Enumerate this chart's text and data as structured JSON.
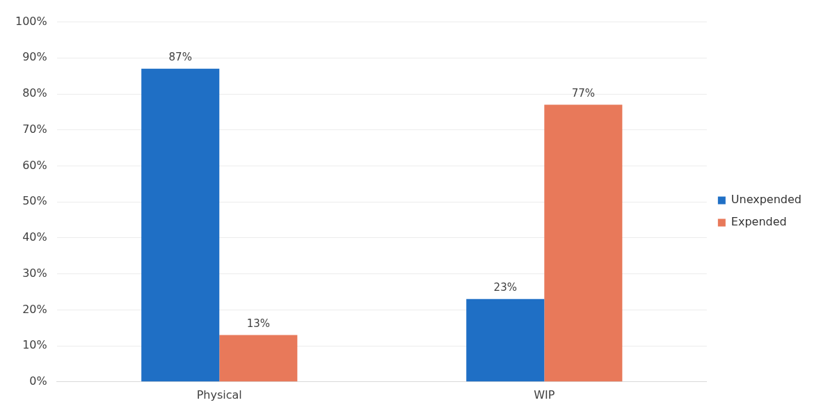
{
  "chart_data": {
    "type": "bar",
    "categories": [
      "Physical",
      "WIP"
    ],
    "series": [
      {
        "name": "Unexpended",
        "color": "#1f6fc5",
        "values": [
          87,
          23
        ],
        "value_labels": [
          "87%",
          "23%"
        ]
      },
      {
        "name": "Expended",
        "color": "#e8795a",
        "values": [
          13,
          77
        ],
        "value_labels": [
          "13%",
          "77%"
        ]
      }
    ],
    "ylim": [
      0,
      100
    ],
    "yticks": [
      {
        "value": 0,
        "label": "0%"
      },
      {
        "value": 10,
        "label": "10%"
      },
      {
        "value": 20,
        "label": "20%"
      },
      {
        "value": 30,
        "label": "30%"
      },
      {
        "value": 40,
        "label": "40%"
      },
      {
        "value": 50,
        "label": "50%"
      },
      {
        "value": 60,
        "label": "60%"
      },
      {
        "value": 70,
        "label": "70%"
      },
      {
        "value": 80,
        "label": "80%"
      },
      {
        "value": 90,
        "label": "90%"
      },
      {
        "value": 100,
        "label": "100%"
      }
    ],
    "grid": "y",
    "legend": "right"
  }
}
